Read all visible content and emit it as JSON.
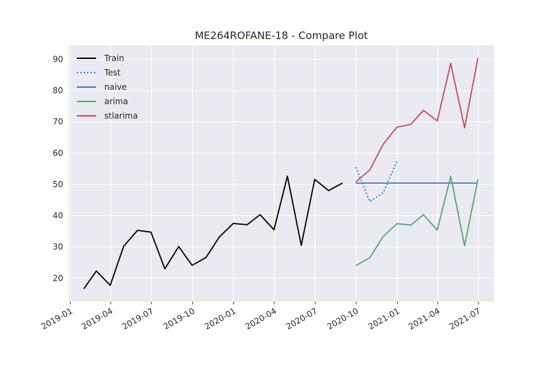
{
  "chart_data": {
    "type": "line",
    "title": "ME264ROFANE-18 - Compare Plot",
    "xlabel": "",
    "ylabel": "",
    "x_type": "date",
    "xlim": [
      "2018-12-28",
      "2021-08-05"
    ],
    "ylim": [
      12.5,
      94.5
    ],
    "grid": true,
    "legend_position": "top-left",
    "x_ticks": [
      {
        "date": "2019-01-01",
        "label": "2019-01"
      },
      {
        "date": "2019-04-01",
        "label": "2019-04"
      },
      {
        "date": "2019-07-01",
        "label": "2019-07"
      },
      {
        "date": "2019-10-01",
        "label": "2019-10"
      },
      {
        "date": "2020-01-01",
        "label": "2020-01"
      },
      {
        "date": "2020-04-01",
        "label": "2020-04"
      },
      {
        "date": "2020-07-01",
        "label": "2020-07"
      },
      {
        "date": "2020-10-01",
        "label": "2020-10"
      },
      {
        "date": "2021-01-01",
        "label": "2021-01"
      },
      {
        "date": "2021-04-01",
        "label": "2021-04"
      },
      {
        "date": "2021-07-01",
        "label": "2021-07"
      }
    ],
    "y_ticks": [
      20,
      30,
      40,
      50,
      60,
      70,
      80,
      90
    ],
    "series": [
      {
        "name": "Train",
        "color": "#000000",
        "style": "solid",
        "x": [
          "2019-01-31",
          "2019-02-28",
          "2019-03-31",
          "2019-04-30",
          "2019-05-31",
          "2019-06-30",
          "2019-07-31",
          "2019-08-31",
          "2019-09-30",
          "2019-10-31",
          "2019-11-30",
          "2019-12-31",
          "2020-01-31",
          "2020-02-29",
          "2020-03-31",
          "2020-04-30",
          "2020-05-31",
          "2020-06-30",
          "2020-07-31",
          "2020-08-31"
        ],
        "values": [
          16.6,
          22.3,
          17.7,
          30.2,
          35.3,
          34.7,
          23.0,
          30.1,
          24.1,
          26.6,
          33.2,
          37.5,
          37.1,
          40.3,
          35.5,
          52.6,
          30.5,
          51.6,
          48.0,
          50.4
        ]
      },
      {
        "name": "Test",
        "color": "#1e88e5",
        "style": "dotted",
        "x": [
          "2020-09-30",
          "2020-10-31",
          "2020-11-30",
          "2020-12-31"
        ],
        "values": [
          55.5,
          44.5,
          47.3,
          57.5
        ]
      },
      {
        "name": "naive",
        "color": "#4c72b0",
        "style": "solid",
        "x": [
          "2020-09-30",
          "2020-10-31",
          "2020-11-30",
          "2020-12-31",
          "2021-01-31",
          "2021-02-28",
          "2021-03-31",
          "2021-04-30",
          "2021-05-31",
          "2021-06-30"
        ],
        "values": [
          50.4,
          50.4,
          50.4,
          50.4,
          50.4,
          50.4,
          50.4,
          50.4,
          50.4,
          50.4
        ]
      },
      {
        "name": "arima",
        "color": "#55a868",
        "style": "solid",
        "x": [
          "2020-09-30",
          "2020-10-31",
          "2020-11-30",
          "2020-12-31",
          "2021-01-31",
          "2021-02-28",
          "2021-03-31",
          "2021-04-30",
          "2021-05-31",
          "2021-06-30"
        ],
        "values": [
          24.0,
          26.5,
          33.3,
          37.4,
          37.0,
          40.3,
          35.4,
          52.6,
          30.4,
          51.6
        ]
      },
      {
        "name": "stlarima",
        "color": "#c44e52",
        "style": "solid",
        "x": [
          "2020-09-30",
          "2020-10-31",
          "2020-11-30",
          "2020-12-31",
          "2021-01-31",
          "2021-02-28",
          "2021-03-31",
          "2021-04-30",
          "2021-05-31",
          "2021-06-30"
        ],
        "values": [
          50.8,
          54.6,
          62.8,
          68.3,
          69.2,
          73.7,
          70.3,
          88.7,
          68.1,
          90.4
        ]
      }
    ]
  }
}
